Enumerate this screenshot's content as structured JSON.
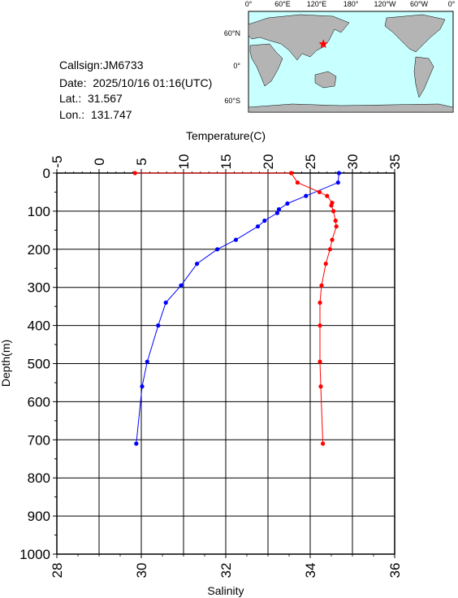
{
  "station": {
    "callsign": "Callsign:JM6733",
    "date": "Date:  2025/10/16 01:16(UTC)",
    "lat": "Lat.:  31.567",
    "lon": "Lon.:  131.747"
  },
  "map": {
    "lon_labels": [
      "0°",
      "60°E",
      "120°E",
      "180°",
      "120°W",
      "60°W",
      "0°"
    ],
    "lat_labels": [
      "60°N",
      "0°",
      "60°S"
    ],
    "marker": {
      "lat": 31.567,
      "lon": 131.747
    },
    "colors": {
      "ocean": "#c8ffff",
      "land": "#b4b4b4",
      "marker": "#ff0000"
    }
  },
  "chart_data": {
    "type": "line",
    "top_axis": {
      "label": "Temperature(C)",
      "range": [
        -5,
        35
      ],
      "ticks": [
        "-5",
        "0",
        "5",
        "10",
        "15",
        "20",
        "25",
        "30",
        "35"
      ]
    },
    "bottom_axis": {
      "label": "Salinity",
      "range": [
        28,
        36
      ],
      "ticks": [
        "28",
        "30",
        "32",
        "34",
        "36"
      ]
    },
    "y_axis": {
      "label": "Depth(m)",
      "range": [
        0,
        1000
      ],
      "ticks": [
        "0",
        "100",
        "200",
        "300",
        "400",
        "500",
        "600",
        "700",
        "800",
        "900",
        "1000"
      ]
    },
    "grid": true,
    "series": [
      {
        "axis": "temperature",
        "color": "#0000ff",
        "points": [
          {
            "x": 28.4,
            "depth": 0
          },
          {
            "x": 28.3,
            "depth": 25
          },
          {
            "x": 24.5,
            "depth": 60
          },
          {
            "x": 22.3,
            "depth": 80
          },
          {
            "x": 21.3,
            "depth": 95
          },
          {
            "x": 21.1,
            "depth": 105
          },
          {
            "x": 19.6,
            "depth": 125
          },
          {
            "x": 18.8,
            "depth": 140
          },
          {
            "x": 16.2,
            "depth": 175
          },
          {
            "x": 14.0,
            "depth": 200
          },
          {
            "x": 11.6,
            "depth": 238
          },
          {
            "x": 9.7,
            "depth": 295
          },
          {
            "x": 7.9,
            "depth": 340
          },
          {
            "x": 7.0,
            "depth": 400
          },
          {
            "x": 5.7,
            "depth": 495
          },
          {
            "x": 5.1,
            "depth": 560
          },
          {
            "x": 4.4,
            "depth": 710
          }
        ]
      },
      {
        "axis": "salinity",
        "color": "#ff0000",
        "points": [
          {
            "x": 29.85,
            "depth": 0
          },
          {
            "x": 33.55,
            "depth": 0
          },
          {
            "x": 33.7,
            "depth": 25
          },
          {
            "x": 34.22,
            "depth": 50
          },
          {
            "x": 34.4,
            "depth": 60
          },
          {
            "x": 34.52,
            "depth": 78
          },
          {
            "x": 34.5,
            "depth": 85
          },
          {
            "x": 34.55,
            "depth": 100
          },
          {
            "x": 34.6,
            "depth": 125
          },
          {
            "x": 34.62,
            "depth": 140
          },
          {
            "x": 34.52,
            "depth": 175
          },
          {
            "x": 34.47,
            "depth": 200
          },
          {
            "x": 34.37,
            "depth": 238
          },
          {
            "x": 34.27,
            "depth": 295
          },
          {
            "x": 34.23,
            "depth": 340
          },
          {
            "x": 34.23,
            "depth": 400
          },
          {
            "x": 34.23,
            "depth": 495
          },
          {
            "x": 34.25,
            "depth": 560
          },
          {
            "x": 34.3,
            "depth": 710
          }
        ]
      }
    ]
  }
}
